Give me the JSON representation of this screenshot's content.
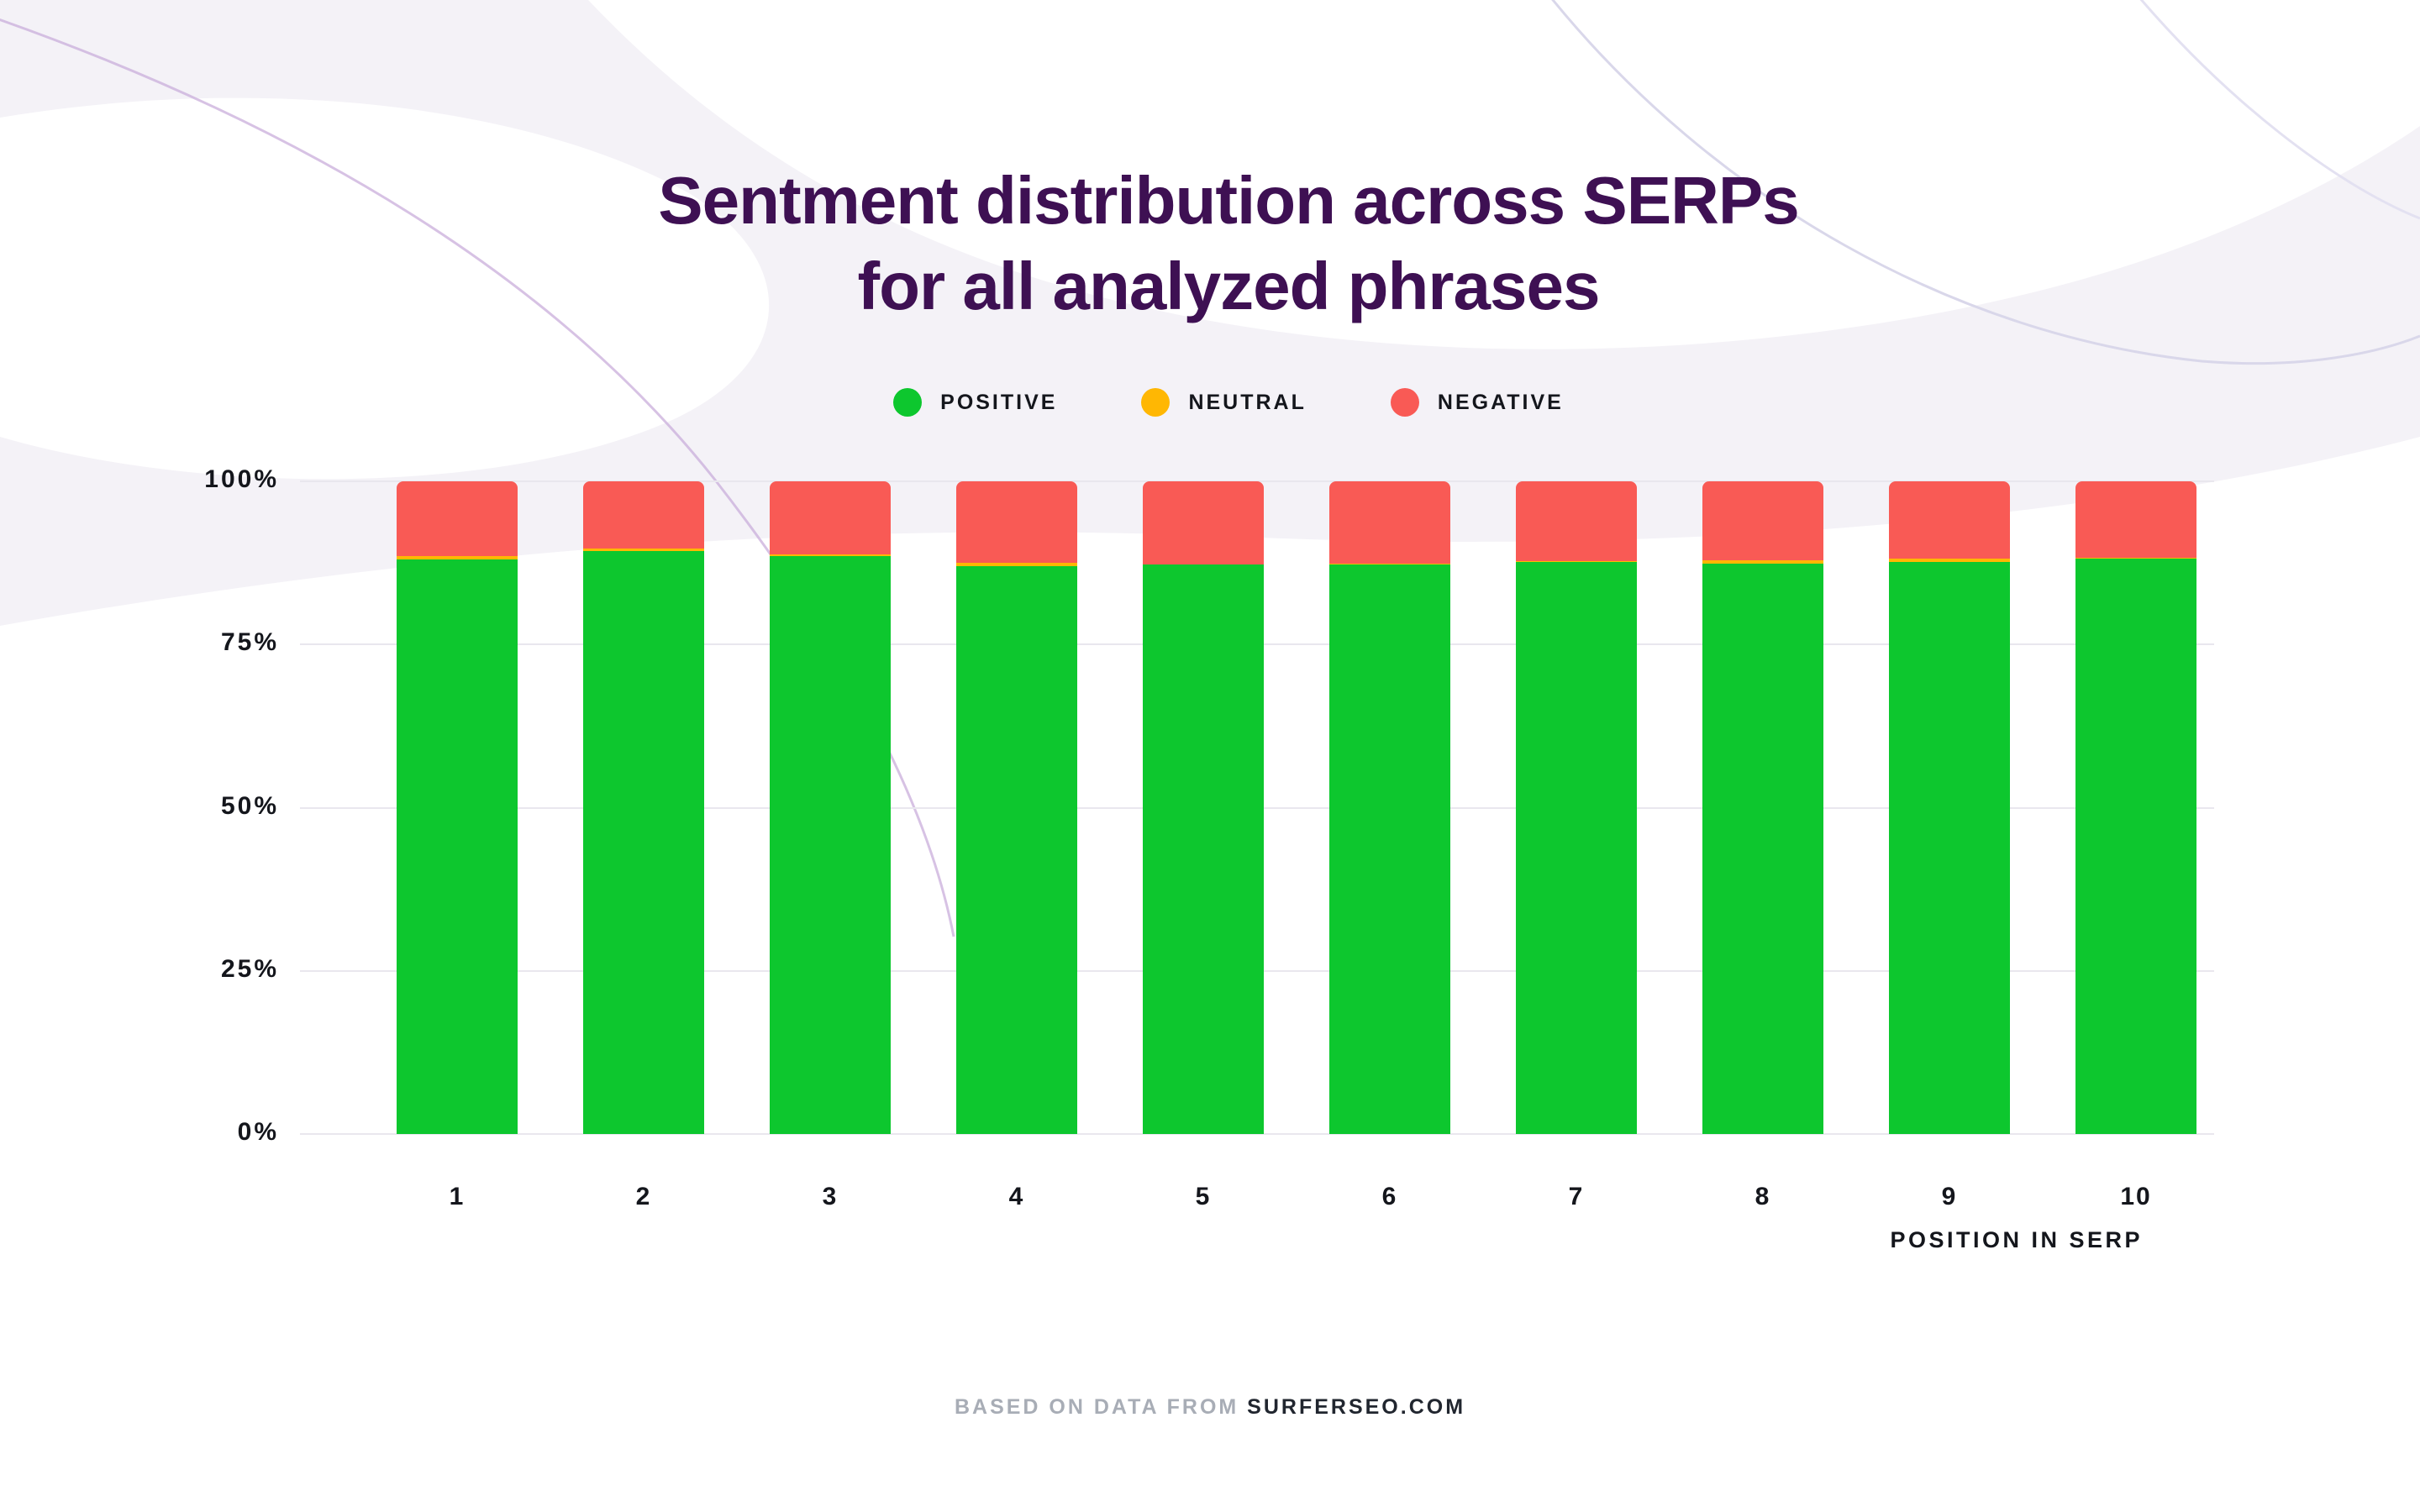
{
  "title": {
    "line1": "Sentment distribution across SERPs",
    "line2": "for all analyzed phrases"
  },
  "legend": [
    {
      "label": "POSITIVE",
      "color": "#0DC72E"
    },
    {
      "label": "NEUTRAL",
      "color": "#FFB703"
    },
    {
      "label": "NEGATIVE",
      "color": "#F95A55"
    }
  ],
  "chart_data": {
    "type": "bar",
    "stacked": true,
    "title": "Sentment distribution across SERPs for all analyzed phrases",
    "categories": [
      "1",
      "2",
      "3",
      "4",
      "5",
      "6",
      "7",
      "8",
      "9",
      "10"
    ],
    "series": [
      {
        "name": "POSITIVE",
        "color": "#0DC72E",
        "values": [
          88.0,
          89.3,
          88.6,
          87.0,
          87.2,
          87.3,
          87.7,
          87.4,
          87.6,
          88.1
        ]
      },
      {
        "name": "NEUTRAL",
        "color": "#FFB703",
        "values": [
          0.5,
          0.4,
          0.2,
          0.5,
          0.1,
          0.1,
          0.1,
          0.5,
          0.5,
          0.2
        ]
      },
      {
        "name": "NEGATIVE",
        "color": "#F95A55",
        "values": [
          11.5,
          10.3,
          11.2,
          12.5,
          12.7,
          12.6,
          12.2,
          12.1,
          11.9,
          11.7
        ]
      }
    ],
    "xlabel": "POSITION IN SERP",
    "ylabel": "",
    "ylim": [
      0,
      100
    ],
    "yticks": [
      "0%",
      "25%",
      "50%",
      "75%",
      "100%"
    ],
    "grid": true,
    "legend_position": "top"
  },
  "x_axis_title": "POSITION IN SERP",
  "footer": {
    "prefix": "BASED ON DATA FROM",
    "brand": "SURFERSEO.COM"
  },
  "colors": {
    "background": "#FFFFFF",
    "band": "#F4F2F7",
    "blob": "#FFFFFF",
    "curve_purple": "#C9ADDB",
    "curve_blue": "#D9D7EA",
    "curve_faint": "#E3E1F1",
    "title": "#3E1053",
    "grid": "#E9E7EE",
    "axis_text": "#14161C",
    "footer_muted": "#A8ADB6",
    "footer_strong": "#21262F"
  }
}
